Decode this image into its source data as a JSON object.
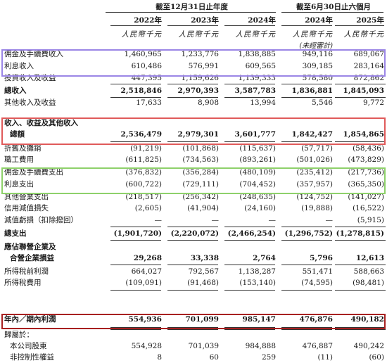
{
  "header": {
    "group1": "截至12月31日止年度",
    "group2": "截至6月30日止六個月",
    "years": [
      "2022年",
      "2023年",
      "2024年",
      "2024年",
      "2025年"
    ],
    "unit": "人民幣千元",
    "unaudited": "(未經審計)"
  },
  "rows": [
    {
      "label": "佣金及手續費收入",
      "values": [
        "1,460,965",
        "1,233,776",
        "1,838,885",
        "949,116",
        "689,067"
      ],
      "bold": false
    },
    {
      "label": "利息收入",
      "values": [
        "610,486",
        "576,991",
        "609,565",
        "309,185",
        "283,164"
      ],
      "bold": false
    },
    {
      "label": "投資收入及收益",
      "values": [
        "447,395",
        "1,159,626",
        "1,139,333",
        "578,580",
        "872,862"
      ],
      "bold": false
    },
    {
      "label": "總收入",
      "values": [
        "2,518,846",
        "2,970,393",
        "3,587,783",
        "1,836,881",
        "1,845,093"
      ],
      "bold": true
    },
    {
      "label": "其他收入及收益",
      "values": [
        "17,633",
        "8,908",
        "13,994",
        "5,546",
        "9,772"
      ],
      "bold": false
    },
    {
      "label": "收入、收益及其他收入",
      "values": [
        "",
        "",
        "",
        "",
        ""
      ],
      "bold": true
    },
    {
      "label": "總額",
      "values": [
        "2,536,479",
        "2,979,301",
        "3,601,777",
        "1,842,427",
        "1,854,865"
      ],
      "bold": true,
      "indent": true
    },
    {
      "label": "折舊及攤銷",
      "values": [
        "(91,219)",
        "(101,868)",
        "(115,637)",
        "(57,717)",
        "(58,436)"
      ],
      "bold": false
    },
    {
      "label": "職工費用",
      "values": [
        "(611,825)",
        "(734,563)",
        "(893,261)",
        "(501,026)",
        "(473,829)"
      ],
      "bold": false
    },
    {
      "label": "佣金及手續費支出",
      "values": [
        "(376,832)",
        "(356,284)",
        "(480,109)",
        "(235,412)",
        "(217,736)"
      ],
      "bold": false
    },
    {
      "label": "利息支出",
      "values": [
        "(600,722)",
        "(729,111)",
        "(704,452)",
        "(357,957)",
        "(365,350)"
      ],
      "bold": false
    },
    {
      "label": "其他營業支出",
      "values": [
        "(218,517)",
        "(256,342)",
        "(248,635)",
        "(124,752)",
        "(141,027)"
      ],
      "bold": false
    },
    {
      "label": "信用減值損失",
      "values": [
        "(2,605)",
        "(41,904)",
        "(24,160)",
        "(19,888)",
        "(16,522)"
      ],
      "bold": false
    },
    {
      "label": "減值虧損（扣除撥回）",
      "values": [
        "—",
        "—",
        "—",
        "—",
        "(5,915)"
      ],
      "bold": false
    },
    {
      "label": "總支出",
      "values": [
        "(1,901,720)",
        "(2,220,072)",
        "(2,466,254)",
        "(1,296,752)",
        "(1,278,815)"
      ],
      "bold": true
    },
    {
      "label": "應佔聯營企業及",
      "values": [
        "",
        "",
        "",
        "",
        ""
      ],
      "bold": true
    },
    {
      "label": "合營企業損益",
      "values": [
        "29,268",
        "33,338",
        "2,764",
        "5,796",
        "12,613"
      ],
      "bold": true,
      "indent": true
    },
    {
      "label": "所得稅前利潤",
      "values": [
        "664,027",
        "792,567",
        "1,138,287",
        "551,471",
        "588,663"
      ],
      "bold": false
    },
    {
      "label": "所得稅費用",
      "values": [
        "(109,091)",
        "(91,468)",
        "(153,140)",
        "(74,595)",
        "(98,481)"
      ],
      "bold": false
    },
    {
      "label": "年內／期內利潤",
      "values": [
        "554,936",
        "701,099",
        "985,147",
        "476,876",
        "490,182"
      ],
      "bold": true
    },
    {
      "label": "歸屬於：",
      "values": [
        "",
        "",
        "",
        "",
        ""
      ],
      "bold": false
    },
    {
      "label": "本公司股東",
      "values": [
        "554,928",
        "701,039",
        "984,888",
        "476,887",
        "490,242"
      ],
      "bold": false,
      "indent": true
    },
    {
      "label": "非控制性權益",
      "values": [
        "8",
        "60",
        "259",
        "(11)",
        "(60)"
      ],
      "bold": false,
      "indent": true
    }
  ],
  "highlights": {
    "purple": "#9b86e6",
    "red": "#e05a5a",
    "green": "#8ed16a",
    "dark_red": "#a82020"
  }
}
